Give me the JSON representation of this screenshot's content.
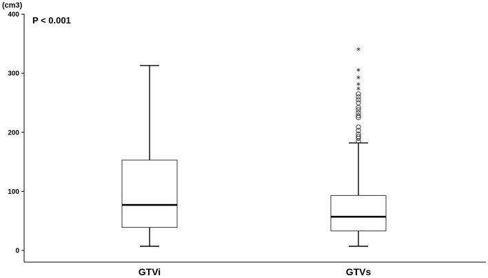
{
  "chart_data": {
    "type": "boxplot",
    "ylabel": "(cm3)",
    "annotation": "P < 0.001",
    "ylim": [
      -20,
      400
    ],
    "yticks": [
      0,
      100,
      200,
      300,
      400
    ],
    "categories": [
      "GTVi",
      "GTVs"
    ],
    "boxes": [
      {
        "name": "GTVi",
        "whisker_low": 7,
        "q1": 39,
        "median": 77,
        "q3": 153,
        "whisker_high": 313,
        "outliers": [],
        "extremes": []
      },
      {
        "name": "GTVs",
        "whisker_low": 7,
        "q1": 33,
        "median": 57,
        "q3": 93,
        "whisker_high": 182,
        "outliers": [
          185,
          190,
          193,
          197,
          203,
          209,
          225,
          228,
          233,
          238,
          242,
          250,
          255,
          260,
          265
        ],
        "extremes": [
          272,
          280,
          291,
          304,
          339
        ]
      }
    ]
  }
}
